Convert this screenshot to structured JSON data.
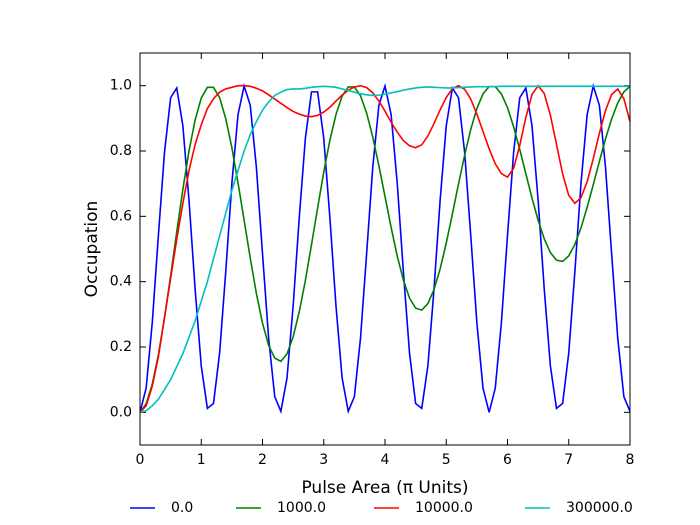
{
  "chart_data": {
    "type": "line",
    "x_label": "Pulse Area (π Units)",
    "y_label": "Occupation",
    "x": [
      0,
      0.1,
      0.2,
      0.3,
      0.4,
      0.5,
      0.6,
      0.7,
      0.8,
      0.9,
      1,
      1.1,
      1.2,
      1.3,
      1.4,
      1.5,
      1.6,
      1.7,
      1.8,
      1.9,
      2,
      2.1,
      2.2,
      2.3,
      2.4,
      2.5,
      2.6,
      2.7,
      2.8,
      2.9,
      3,
      3.1,
      3.2,
      3.3,
      3.4,
      3.5,
      3.6,
      3.7,
      3.8,
      3.9,
      4,
      4.1,
      4.2,
      4.3,
      4.4,
      4.5,
      4.6,
      4.7,
      4.8,
      4.9,
      5,
      5.1,
      5.2,
      5.3,
      5.4,
      5.5,
      5.6,
      5.7,
      5.8,
      5.9,
      6,
      6.1,
      6.2,
      6.3,
      6.4,
      6.5,
      6.6,
      6.7,
      6.8,
      6.9,
      7,
      7.1,
      7.2,
      7.3,
      7.4,
      7.5,
      7.6,
      7.7,
      7.8,
      7.9,
      8
    ],
    "series": [
      {
        "name": "0.0",
        "color": "#0000ff",
        "values": [
          0,
          0.074,
          0.274,
          0.541,
          0.796,
          0.963,
          0.993,
          0.877,
          0.649,
          0.377,
          0.142,
          0.012,
          0.027,
          0.182,
          0.431,
          0.701,
          0.911,
          0.999,
          0.94,
          0.75,
          0.486,
          0.227,
          0.048,
          0.003,
          0.105,
          0.325,
          0.596,
          0.839,
          0.981,
          0.981,
          0.839,
          0.596,
          0.325,
          0.105,
          0.003,
          0.048,
          0.227,
          0.486,
          0.75,
          0.94,
          0.999,
          0.911,
          0.701,
          0.431,
          0.182,
          0.027,
          0.012,
          0.142,
          0.377,
          0.649,
          0.877,
          0.993,
          0.963,
          0.796,
          0.541,
          0.274,
          0.074,
          0,
          0.074,
          0.274,
          0.541,
          0.796,
          0.963,
          0.993,
          0.877,
          0.649,
          0.377,
          0.142,
          0.012,
          0.027,
          0.182,
          0.431,
          0.701,
          0.911,
          0.999,
          0.94,
          0.75,
          0.486,
          0.227,
          0.048,
          0.003
        ]
      },
      {
        "name": "1000.0",
        "color": "#008000",
        "values": [
          0,
          0.026,
          0.086,
          0.176,
          0.29,
          0.418,
          0.553,
          0.683,
          0.8,
          0.895,
          0.962,
          0.995,
          0.995,
          0.963,
          0.899,
          0.81,
          0.703,
          0.588,
          0.472,
          0.364,
          0.273,
          0.205,
          0.166,
          0.156,
          0.179,
          0.231,
          0.308,
          0.404,
          0.513,
          0.626,
          0.735,
          0.833,
          0.912,
          0.968,
          0.996,
          0.996,
          0.969,
          0.916,
          0.843,
          0.755,
          0.661,
          0.566,
          0.478,
          0.405,
          0.35,
          0.319,
          0.313,
          0.333,
          0.376,
          0.439,
          0.518,
          0.607,
          0.699,
          0.787,
          0.866,
          0.93,
          0.975,
          0.997,
          0.997,
          0.975,
          0.933,
          0.874,
          0.805,
          0.73,
          0.656,
          0.588,
          0.531,
          0.489,
          0.466,
          0.462,
          0.479,
          0.514,
          0.565,
          0.627,
          0.697,
          0.768,
          0.837,
          0.898,
          0.947,
          0.981,
          0.998
        ]
      },
      {
        "name": "10000.0",
        "color": "#ff0000",
        "values": [
          0,
          0.02,
          0.08,
          0.17,
          0.29,
          0.41,
          0.53,
          0.64,
          0.74,
          0.82,
          0.88,
          0.93,
          0.96,
          0.98,
          0.99,
          0.995,
          1,
          1,
          0.998,
          0.992,
          0.984,
          0.972,
          0.959,
          0.946,
          0.933,
          0.921,
          0.913,
          0.907,
          0.905,
          0.909,
          0.919,
          0.934,
          0.953,
          0.971,
          0.986,
          0.996,
          1,
          0.994,
          0.978,
          0.953,
          0.922,
          0.888,
          0.858,
          0.832,
          0.816,
          0.81,
          0.819,
          0.846,
          0.884,
          0.926,
          0.964,
          0.991,
          1,
          0.989,
          0.959,
          0.913,
          0.86,
          0.807,
          0.761,
          0.731,
          0.72,
          0.747,
          0.817,
          0.903,
          0.973,
          1,
          0.976,
          0.91,
          0.82,
          0.73,
          0.664,
          0.64,
          0.657,
          0.706,
          0.776,
          0.854,
          0.924,
          0.973,
          0.99,
          0.96,
          0.89
        ]
      },
      {
        "name": "300000.0",
        "color": "#00bfbf",
        "values": [
          0,
          0.005,
          0.02,
          0.04,
          0.07,
          0.1,
          0.14,
          0.18,
          0.23,
          0.28,
          0.34,
          0.4,
          0.47,
          0.54,
          0.61,
          0.68,
          0.74,
          0.8,
          0.85,
          0.89,
          0.925,
          0.95,
          0.97,
          0.98,
          0.988,
          0.99,
          0.99,
          0.992,
          0.995,
          0.997,
          0.998,
          0.997,
          0.995,
          0.99,
          0.985,
          0.98,
          0.975,
          0.972,
          0.97,
          0.971,
          0.974,
          0.978,
          0.982,
          0.986,
          0.99,
          0.993,
          0.995,
          0.996,
          0.995,
          0.994,
          0.993,
          0.993,
          0.994,
          0.995,
          0.996,
          0.997,
          0.997,
          0.997,
          0.997,
          0.998,
          0.998,
          0.998,
          0.998,
          0.998,
          0.998,
          0.998,
          0.998,
          0.998,
          0.998,
          0.998,
          0.998,
          0.998,
          0.998,
          0.998,
          0.998,
          0.998,
          0.998,
          0.998,
          0.998,
          0.998,
          0.998
        ]
      }
    ],
    "xlim": [
      0,
      8
    ],
    "xticks": [
      0,
      1,
      2,
      3,
      4,
      5,
      6,
      7,
      8
    ],
    "ylim": [
      -0.1,
      1.1
    ],
    "yticks": [
      {
        "value": 0,
        "label": "0.0"
      },
      {
        "value": 0.2,
        "label": "0.2"
      },
      {
        "value": 0.4,
        "label": "0.4"
      },
      {
        "value": 0.6,
        "label": "0.6"
      },
      {
        "value": 0.8,
        "label": "0.8"
      },
      {
        "value": 1,
        "label": "1.0"
      }
    ],
    "legend": "below"
  }
}
